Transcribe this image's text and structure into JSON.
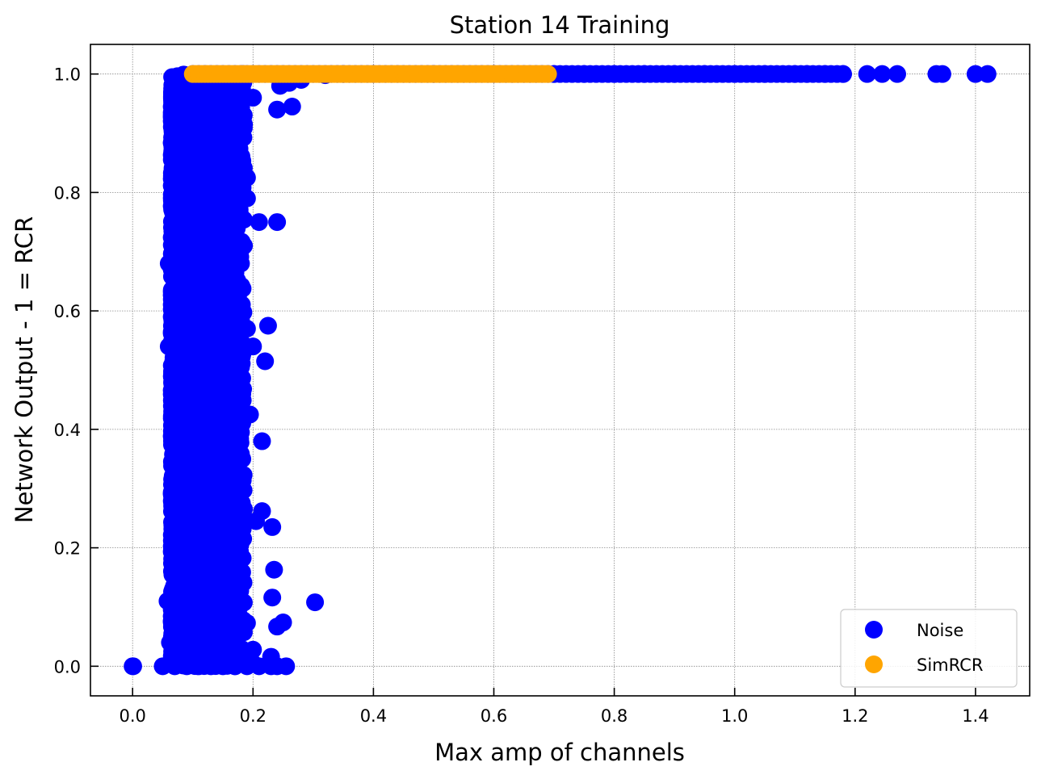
{
  "chart_data": {
    "type": "scatter",
    "title": "Station 14 Training",
    "xlabel": "Max amp of channels",
    "ylabel": "Network Output - 1 = RCR",
    "xlim": [
      -0.07,
      1.49
    ],
    "ylim": [
      -0.05,
      1.05
    ],
    "x_ticks": [
      "0.0",
      "0.2",
      "0.4",
      "0.6",
      "0.8",
      "1.0",
      "1.2",
      "1.4"
    ],
    "y_ticks": [
      "0.0",
      "0.2",
      "0.4",
      "0.6",
      "0.8",
      "1.0"
    ],
    "grid": true,
    "legend_position": "lower-right",
    "series": [
      {
        "name": "Noise",
        "color": "#0000ff",
        "points": [
          [
            0.0,
            0.0
          ],
          [
            0.001,
            0.0
          ],
          [
            0.05,
            0.0
          ],
          [
            0.07,
            0.0
          ],
          [
            0.09,
            0.0
          ],
          [
            0.11,
            0.0
          ],
          [
            0.13,
            0.0
          ],
          [
            0.15,
            0.0
          ],
          [
            0.17,
            0.0
          ],
          [
            0.19,
            0.0
          ],
          [
            0.21,
            0.0
          ],
          [
            0.23,
            0.0
          ],
          [
            0.24,
            0.0
          ],
          [
            0.255,
            0.0
          ],
          [
            0.06,
            0.54
          ],
          [
            0.058,
            0.11
          ],
          [
            0.062,
            0.04
          ],
          [
            0.06,
            0.68
          ],
          [
            0.065,
            0.67
          ],
          [
            0.19,
            0.825
          ],
          [
            0.19,
            0.79
          ],
          [
            0.21,
            0.75
          ],
          [
            0.24,
            0.75
          ],
          [
            0.185,
            0.71
          ],
          [
            0.18,
            0.68
          ],
          [
            0.19,
            0.57
          ],
          [
            0.225,
            0.575
          ],
          [
            0.2,
            0.54
          ],
          [
            0.22,
            0.515
          ],
          [
            0.18,
            0.505
          ],
          [
            0.175,
            0.46
          ],
          [
            0.195,
            0.425
          ],
          [
            0.18,
            0.395
          ],
          [
            0.215,
            0.38
          ],
          [
            0.215,
            0.262
          ],
          [
            0.205,
            0.245
          ],
          [
            0.232,
            0.235
          ],
          [
            0.17,
            0.145
          ],
          [
            0.235,
            0.163
          ],
          [
            0.232,
            0.116
          ],
          [
            0.303,
            0.108
          ],
          [
            0.19,
            0.073
          ],
          [
            0.25,
            0.074
          ],
          [
            0.24,
            0.067
          ],
          [
            0.2,
            0.028
          ],
          [
            0.23,
            0.016
          ],
          [
            0.2,
            0.005
          ],
          [
            0.24,
            0.94
          ],
          [
            0.265,
            0.945
          ],
          [
            0.185,
            0.915
          ],
          [
            0.2,
            0.96
          ],
          [
            0.245,
            0.98
          ],
          [
            0.26,
            0.985
          ],
          [
            0.28,
            0.99
          ],
          [
            0.32,
            0.998
          ],
          [
            0.35,
            1.0
          ],
          [
            0.4,
            1.0
          ],
          [
            0.5,
            1.0
          ],
          [
            0.6,
            1.0
          ],
          [
            0.7,
            1.0
          ],
          [
            0.75,
            1.0
          ],
          [
            0.8,
            1.0
          ],
          [
            0.85,
            1.0
          ],
          [
            0.9,
            1.0
          ],
          [
            0.95,
            1.0
          ],
          [
            1.0,
            1.0
          ],
          [
            1.05,
            1.0
          ],
          [
            1.1,
            1.0
          ],
          [
            1.12,
            1.0
          ],
          [
            1.15,
            1.0
          ],
          [
            1.18,
            1.0
          ],
          [
            1.22,
            1.0
          ],
          [
            1.245,
            1.0
          ],
          [
            1.27,
            1.0
          ],
          [
            1.335,
            1.0
          ],
          [
            1.345,
            1.0
          ],
          [
            1.4,
            1.0
          ],
          [
            1.42,
            1.0
          ]
        ]
      },
      {
        "name": "SimRCR",
        "color": "#ffa500",
        "x_range": [
          0.1,
          0.69
        ],
        "y": 1.0
      }
    ]
  }
}
